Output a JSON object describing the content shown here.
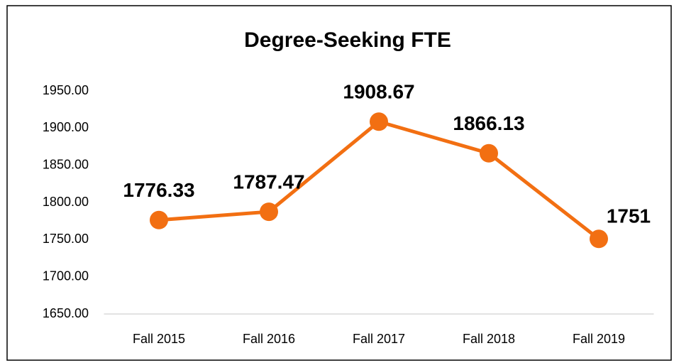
{
  "chart_data": {
    "type": "line",
    "title": "Degree-Seeking FTE",
    "categories": [
      "Fall 2015",
      "Fall 2016",
      "Fall 2017",
      "Fall 2018",
      "Fall 2019"
    ],
    "values": [
      1776.33,
      1787.47,
      1908.67,
      1866.13,
      1751
    ],
    "color": "#f26f12",
    "ylim": [
      1650,
      1950
    ],
    "yticks": [
      {
        "value": 1650,
        "label": "1650.00"
      },
      {
        "value": 1700,
        "label": "1700.00"
      },
      {
        "value": 1750,
        "label": "1750.00"
      },
      {
        "value": 1800,
        "label": "1800.00"
      },
      {
        "value": 1850,
        "label": "1850.00"
      },
      {
        "value": 1900,
        "label": "1900.00"
      },
      {
        "value": 1950,
        "label": "1950.00"
      }
    ],
    "grid": false
  }
}
